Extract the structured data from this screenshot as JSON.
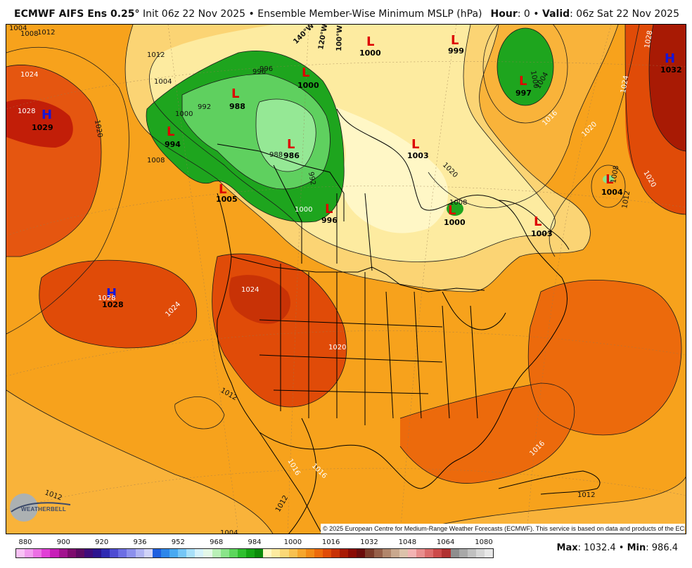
{
  "header": {
    "model": "ECMWF AIFS Ens 0.25",
    "degree": "°",
    "init": "Init 06z 22 Nov 2025",
    "sep": "•",
    "product": "Ensemble Member-Wise Minimum MSLP (hPa)",
    "hour_label": "Hour",
    "hour_value": ": 0",
    "valid_label": "Valid",
    "valid_value": ": 06z Sat 22 Nov 2025"
  },
  "copyright": "© 2025 European Centre for Medium-Range Weather Forecasts (ECMWF). This service is based on data and products of the ECMWF.",
  "logo": {
    "text": "WEATHERBELL",
    "icon": "weatherbell-logo-icon"
  },
  "colorbar": {
    "ticks": [
      "880",
      "900",
      "920",
      "936",
      "952",
      "968",
      "984",
      "1000",
      "1016",
      "1032",
      "1048",
      "1064",
      "1080"
    ],
    "colors": [
      "#f9c2f5",
      "#f29bee",
      "#ec6fe4",
      "#e13fd6",
      "#c71eb8",
      "#a2138f",
      "#7d0c6e",
      "#5c0a63",
      "#3e0c7a",
      "#2c148f",
      "#2f2ab2",
      "#4e4cd2",
      "#6c6ee4",
      "#8c90ed",
      "#b0b4f3",
      "#d0d3f8",
      "#1e5fe0",
      "#2c86ea",
      "#48a9f1",
      "#75c6f6",
      "#a8e0f9",
      "#d5f2fb",
      "#e4f8e8",
      "#b9f0b7",
      "#8ae48a",
      "#5cd65c",
      "#2fbf2f",
      "#15a515",
      "#0a8a0a",
      "#fff9c4",
      "#fdeba0",
      "#fbd877",
      "#f8c150",
      "#f6a62c",
      "#f28a16",
      "#ec6a0c",
      "#e04b08",
      "#c83206",
      "#a81a04",
      "#8a0a04",
      "#6a0b0b",
      "#7c3b2a",
      "#96604a",
      "#b1866c",
      "#c9a88e",
      "#dcc2ab",
      "#f3b3b3",
      "#e88e8e",
      "#dc6b6b",
      "#cc4a4a",
      "#b03232",
      "#8e8e8e",
      "#a8a8a8",
      "#c0c0c0",
      "#d6d6d6",
      "#e8e8e8"
    ]
  },
  "stats": {
    "max_label": "Max",
    "max_value": ": 1032.4",
    "sep": "•",
    "min_label": "Min",
    "min_value": ": 986.4"
  },
  "centers": [
    {
      "type": "H",
      "value": "1029"
    },
    {
      "type": "H",
      "value": "1028"
    },
    {
      "type": "H",
      "value": "1032"
    },
    {
      "type": "L",
      "value": "994"
    },
    {
      "type": "L",
      "value": "988"
    },
    {
      "type": "L",
      "value": "986"
    },
    {
      "type": "L",
      "value": "1000"
    },
    {
      "type": "L",
      "value": "996"
    },
    {
      "type": "L",
      "value": "1005"
    },
    {
      "type": "L",
      "value": "1000"
    },
    {
      "type": "L",
      "value": "999"
    },
    {
      "type": "L",
      "value": "997"
    },
    {
      "type": "L",
      "value": "1003"
    },
    {
      "type": "L",
      "value": "1000"
    },
    {
      "type": "L",
      "value": "1003"
    },
    {
      "type": "L",
      "value": "1004"
    }
  ],
  "contour_labels": [
    "1004",
    "1008",
    "1012",
    "1024",
    "1028",
    "1020",
    "1012",
    "1008",
    "1004",
    "1000",
    "996",
    "992",
    "988",
    "992",
    "140°W",
    "120°W",
    "100°W",
    "1000",
    "1004",
    "1016",
    "1020",
    "1024",
    "1028",
    "1020",
    "1012",
    "1008",
    "1024",
    "1028",
    "1024",
    "1020",
    "1016",
    "1016",
    "1012",
    "1012",
    "1012",
    "1012",
    "1016",
    "1020",
    "1004",
    "1008",
    "1000",
    "996"
  ]
}
